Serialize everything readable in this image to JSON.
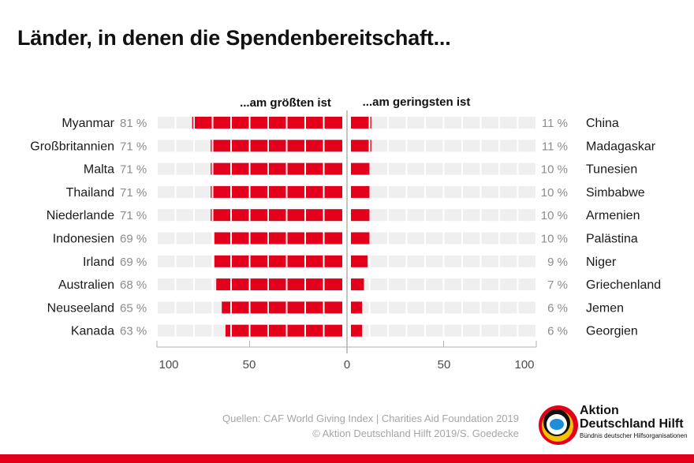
{
  "title": "Länder, in denen die Spendenbereitschaft...",
  "chart_data": {
    "type": "bar",
    "left_header": "...am größten ist",
    "right_header": "...am geringsten ist",
    "axis_min": 0,
    "axis_max": 100,
    "left_ticks": [
      "100",
      "50",
      "0"
    ],
    "right_ticks": [
      "50",
      "100"
    ],
    "left": [
      {
        "country": "Myanmar",
        "value": 81,
        "label": "81 %"
      },
      {
        "country": "Großbritannien",
        "value": 71,
        "label": "71 %"
      },
      {
        "country": "Malta",
        "value": 71,
        "label": "71 %"
      },
      {
        "country": "Thailand",
        "value": 71,
        "label": "71 %"
      },
      {
        "country": "Niederlande",
        "value": 71,
        "label": "71 %"
      },
      {
        "country": "Indonesien",
        "value": 69,
        "label": "69 %"
      },
      {
        "country": "Irland",
        "value": 69,
        "label": "69 %"
      },
      {
        "country": "Australien",
        "value": 68,
        "label": "68 %"
      },
      {
        "country": "Neuseeland",
        "value": 65,
        "label": "65 %"
      },
      {
        "country": "Kanada",
        "value": 63,
        "label": "63 %"
      }
    ],
    "right": [
      {
        "country": "China",
        "value": 11,
        "label": "11 %"
      },
      {
        "country": "Madagaskar",
        "value": 11,
        "label": "11 %"
      },
      {
        "country": "Tunesien",
        "value": 10,
        "label": "10 %"
      },
      {
        "country": "Simbabwe",
        "value": 10,
        "label": "10 %"
      },
      {
        "country": "Armenien",
        "value": 10,
        "label": "10 %"
      },
      {
        "country": "Palästina",
        "value": 10,
        "label": "10 %"
      },
      {
        "country": "Niger",
        "value": 9,
        "label": "9 %"
      },
      {
        "country": "Griechenland",
        "value": 7,
        "label": "7 %"
      },
      {
        "country": "Jemen",
        "value": 6,
        "label": "6 %"
      },
      {
        "country": "Georgien",
        "value": 6,
        "label": "6 %"
      }
    ],
    "colors": {
      "bar": "#e2001a",
      "track": "#efefef",
      "segment": "#ffffff",
      "axis": "#b0b0b0",
      "value_text": "#8c8c8c"
    }
  },
  "sources": {
    "line1": "Quellen: CAF World Giving Index | Charities Aid Foundation 2019",
    "line2": "© Aktion Deutschland Hilft 2019/S. Goedecke"
  },
  "logo": {
    "line1": "Aktion",
    "line2": "Deutschland Hilft",
    "tagline": "Bündnis deutscher Hilfsorganisationen"
  }
}
